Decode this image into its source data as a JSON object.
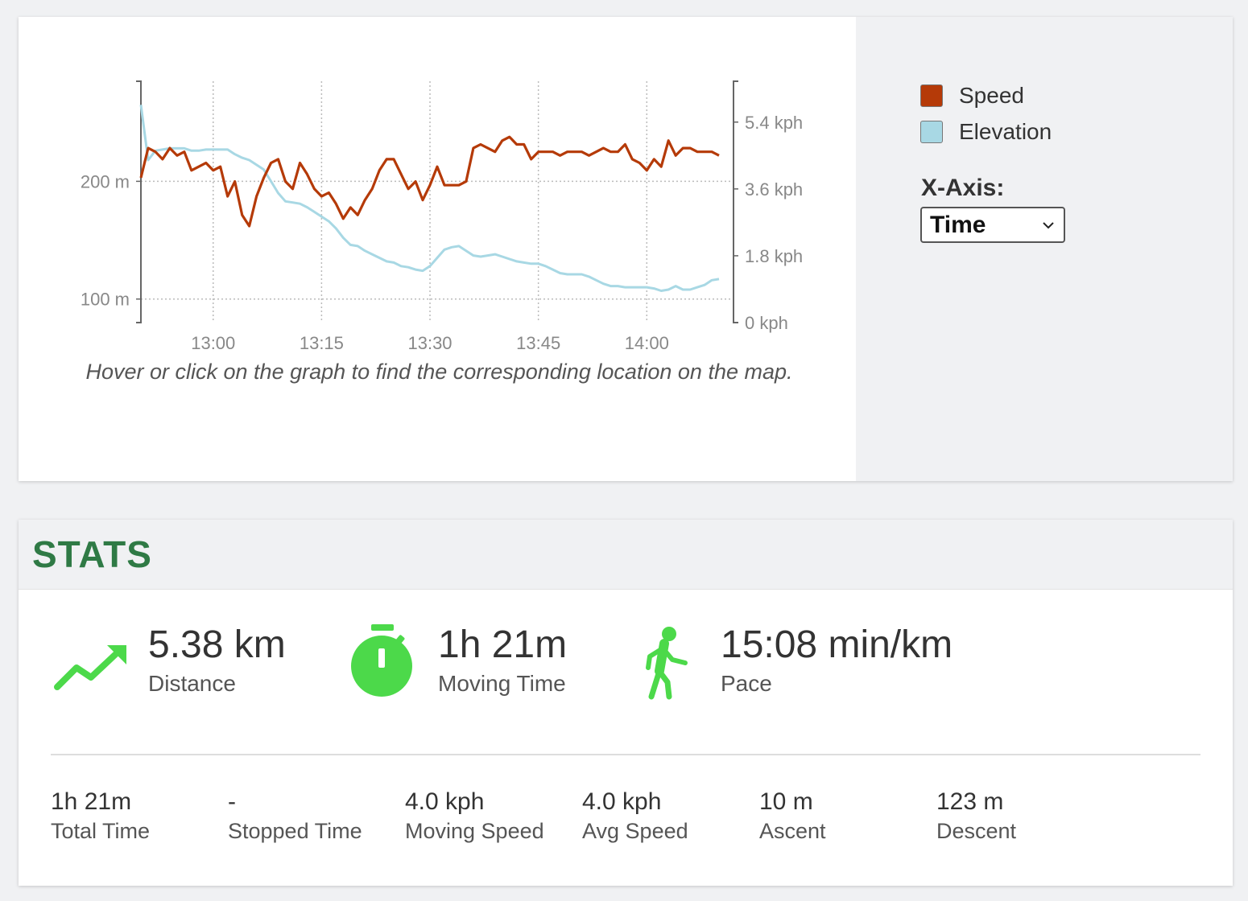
{
  "chart": {
    "hint": "Hover or click on the graph to find the corresponding location on the map.",
    "legend": [
      {
        "label": "Speed",
        "color": "#b53a08"
      },
      {
        "label": "Elevation",
        "color": "#a8d8e4"
      }
    ],
    "xaxis_control": {
      "label": "X-Axis:",
      "selected": "Time"
    }
  },
  "chart_data": {
    "type": "line",
    "x_ticks": [
      "13:00",
      "13:15",
      "13:30",
      "13:45",
      "14:00"
    ],
    "y_left_ticks": [
      "200 m",
      "100 m"
    ],
    "y_right_ticks": [
      "5.4 kph",
      "3.6 kph",
      "1.8 kph",
      "0 kph"
    ],
    "y_left_range": [
      80,
      285
    ],
    "y_right_range": [
      0,
      6.5
    ],
    "x_range": [
      "12:50",
      "14:12"
    ],
    "grid": true,
    "legend_position": "right",
    "series": [
      {
        "name": "Speed",
        "axis": "right",
        "color": "#b53a08",
        "points": [
          [
            "12:50",
            3.9
          ],
          [
            "12:51",
            4.7
          ],
          [
            "12:52",
            4.6
          ],
          [
            "12:53",
            4.4
          ],
          [
            "12:54",
            4.7
          ],
          [
            "12:55",
            4.5
          ],
          [
            "12:56",
            4.6
          ],
          [
            "12:57",
            4.1
          ],
          [
            "12:58",
            4.2
          ],
          [
            "12:59",
            4.3
          ],
          [
            "13:00",
            4.1
          ],
          [
            "13:01",
            4.2
          ],
          [
            "13:02",
            3.4
          ],
          [
            "13:03",
            3.8
          ],
          [
            "13:04",
            2.9
          ],
          [
            "13:05",
            2.6
          ],
          [
            "13:06",
            3.4
          ],
          [
            "13:07",
            3.9
          ],
          [
            "13:08",
            4.3
          ],
          [
            "13:09",
            4.4
          ],
          [
            "13:10",
            3.8
          ],
          [
            "13:11",
            3.6
          ],
          [
            "13:12",
            4.3
          ],
          [
            "13:13",
            4.0
          ],
          [
            "13:14",
            3.6
          ],
          [
            "13:15",
            3.4
          ],
          [
            "13:16",
            3.5
          ],
          [
            "13:17",
            3.2
          ],
          [
            "13:18",
            2.8
          ],
          [
            "13:19",
            3.1
          ],
          [
            "13:20",
            2.9
          ],
          [
            "13:21",
            3.3
          ],
          [
            "13:22",
            3.6
          ],
          [
            "13:23",
            4.1
          ],
          [
            "13:24",
            4.4
          ],
          [
            "13:25",
            4.4
          ],
          [
            "13:26",
            4.0
          ],
          [
            "13:27",
            3.6
          ],
          [
            "13:28",
            3.8
          ],
          [
            "13:29",
            3.3
          ],
          [
            "13:30",
            3.7
          ],
          [
            "13:31",
            4.2
          ],
          [
            "13:32",
            3.7
          ],
          [
            "13:33",
            3.7
          ],
          [
            "13:34",
            3.7
          ],
          [
            "13:35",
            3.8
          ],
          [
            "13:36",
            4.7
          ],
          [
            "13:37",
            4.8
          ],
          [
            "13:38",
            4.7
          ],
          [
            "13:39",
            4.6
          ],
          [
            "13:40",
            4.9
          ],
          [
            "13:41",
            5.0
          ],
          [
            "13:42",
            4.8
          ],
          [
            "13:43",
            4.8
          ],
          [
            "13:44",
            4.4
          ],
          [
            "13:45",
            4.6
          ],
          [
            "13:46",
            4.6
          ],
          [
            "13:47",
            4.6
          ],
          [
            "13:48",
            4.5
          ],
          [
            "13:49",
            4.6
          ],
          [
            "13:50",
            4.6
          ],
          [
            "13:51",
            4.6
          ],
          [
            "13:52",
            4.5
          ],
          [
            "13:53",
            4.6
          ],
          [
            "13:54",
            4.7
          ],
          [
            "13:55",
            4.6
          ],
          [
            "13:56",
            4.6
          ],
          [
            "13:57",
            4.8
          ],
          [
            "13:58",
            4.4
          ],
          [
            "13:59",
            4.3
          ],
          [
            "14:00",
            4.1
          ],
          [
            "14:01",
            4.4
          ],
          [
            "14:02",
            4.2
          ],
          [
            "14:03",
            4.9
          ],
          [
            "14:04",
            4.5
          ],
          [
            "14:05",
            4.7
          ],
          [
            "14:06",
            4.7
          ],
          [
            "14:07",
            4.6
          ],
          [
            "14:08",
            4.6
          ],
          [
            "14:09",
            4.6
          ],
          [
            "14:10",
            4.5
          ]
        ]
      },
      {
        "name": "Elevation",
        "axis": "left",
        "color": "#a8d8e4",
        "points": [
          [
            "12:50",
            265
          ],
          [
            "12:51",
            218
          ],
          [
            "12:52",
            226
          ],
          [
            "12:53",
            227
          ],
          [
            "12:54",
            228
          ],
          [
            "12:55",
            228
          ],
          [
            "12:56",
            228
          ],
          [
            "12:57",
            226
          ],
          [
            "12:58",
            226
          ],
          [
            "12:59",
            227
          ],
          [
            "13:00",
            227
          ],
          [
            "13:01",
            227
          ],
          [
            "13:02",
            227
          ],
          [
            "13:03",
            223
          ],
          [
            "13:04",
            220
          ],
          [
            "13:05",
            218
          ],
          [
            "13:06",
            214
          ],
          [
            "13:07",
            210
          ],
          [
            "13:08",
            200
          ],
          [
            "13:09",
            190
          ],
          [
            "13:10",
            183
          ],
          [
            "13:11",
            182
          ],
          [
            "13:12",
            181
          ],
          [
            "13:13",
            178
          ],
          [
            "13:14",
            174
          ],
          [
            "13:15",
            170
          ],
          [
            "13:16",
            166
          ],
          [
            "13:17",
            160
          ],
          [
            "13:18",
            152
          ],
          [
            "13:19",
            146
          ],
          [
            "13:20",
            145
          ],
          [
            "13:21",
            141
          ],
          [
            "13:22",
            138
          ],
          [
            "13:23",
            135
          ],
          [
            "13:24",
            132
          ],
          [
            "13:25",
            131
          ],
          [
            "13:26",
            128
          ],
          [
            "13:27",
            127
          ],
          [
            "13:28",
            125
          ],
          [
            "13:29",
            124
          ],
          [
            "13:30",
            128
          ],
          [
            "13:31",
            135
          ],
          [
            "13:32",
            142
          ],
          [
            "13:33",
            144
          ],
          [
            "13:34",
            145
          ],
          [
            "13:35",
            141
          ],
          [
            "13:36",
            137
          ],
          [
            "13:37",
            136
          ],
          [
            "13:38",
            137
          ],
          [
            "13:39",
            138
          ],
          [
            "13:40",
            136
          ],
          [
            "13:41",
            134
          ],
          [
            "13:42",
            132
          ],
          [
            "13:43",
            131
          ],
          [
            "13:44",
            130
          ],
          [
            "13:45",
            130
          ],
          [
            "13:46",
            128
          ],
          [
            "13:47",
            125
          ],
          [
            "13:48",
            122
          ],
          [
            "13:49",
            121
          ],
          [
            "13:50",
            121
          ],
          [
            "13:51",
            121
          ],
          [
            "13:52",
            119
          ],
          [
            "13:53",
            116
          ],
          [
            "13:54",
            113
          ],
          [
            "13:55",
            111
          ],
          [
            "13:56",
            111
          ],
          [
            "13:57",
            110
          ],
          [
            "13:58",
            110
          ],
          [
            "13:59",
            110
          ],
          [
            "14:00",
            110
          ],
          [
            "14:01",
            109
          ],
          [
            "14:02",
            107
          ],
          [
            "14:03",
            108
          ],
          [
            "14:04",
            111
          ],
          [
            "14:05",
            108
          ],
          [
            "14:06",
            108
          ],
          [
            "14:07",
            110
          ],
          [
            "14:08",
            112
          ],
          [
            "14:09",
            116
          ],
          [
            "14:10",
            117
          ]
        ]
      }
    ]
  },
  "stats": {
    "title": "STATS",
    "primary": [
      {
        "icon": "trending-up-icon",
        "value": "5.38 km",
        "label": "Distance"
      },
      {
        "icon": "stopwatch-icon",
        "value": "1h 21m",
        "label": "Moving Time"
      },
      {
        "icon": "walking-person-icon",
        "value": "15:08 min/km",
        "label": "Pace"
      }
    ],
    "secondary": [
      {
        "value": "1h 21m",
        "label": "Total Time"
      },
      {
        "value": "-",
        "label": "Stopped Time"
      },
      {
        "value": "4.0 kph",
        "label": "Moving Speed"
      },
      {
        "value": "4.0 kph",
        "label": "Avg Speed"
      },
      {
        "value": "10 m",
        "label": "Ascent"
      },
      {
        "value": "123 m",
        "label": "Descent"
      }
    ],
    "icon_color": "#4cd94a"
  }
}
